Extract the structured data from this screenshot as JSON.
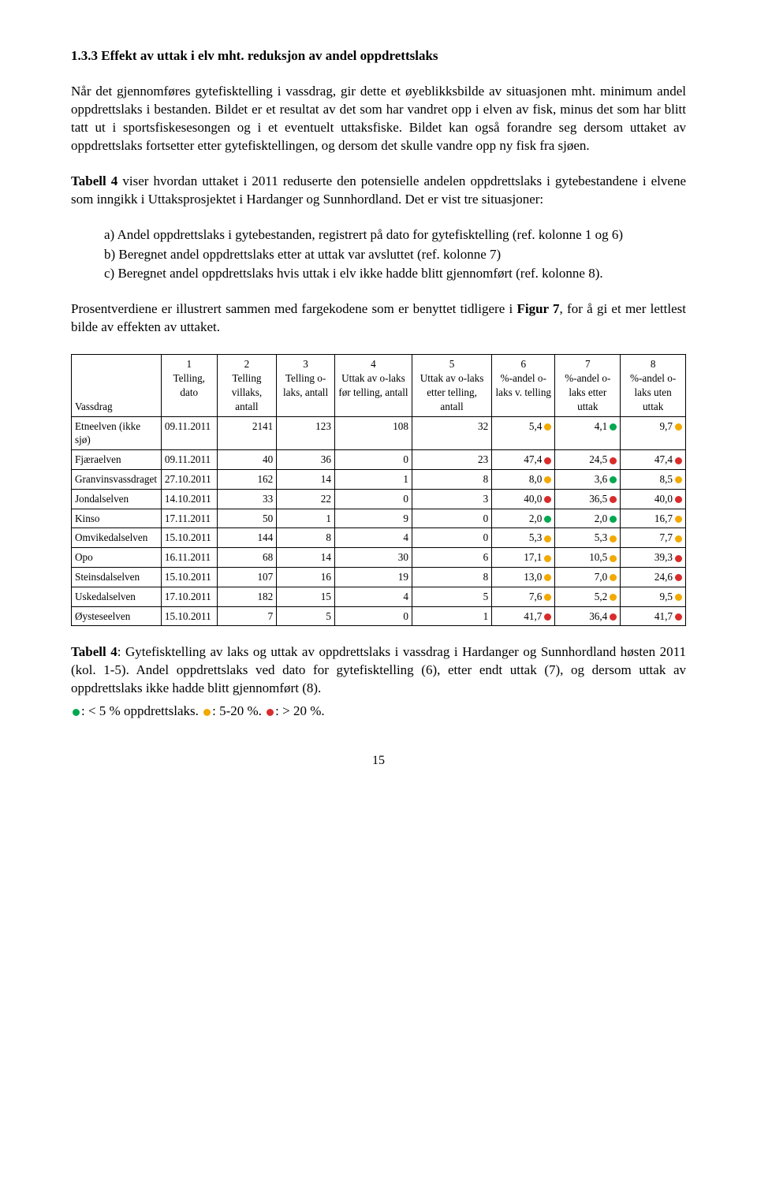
{
  "colors": {
    "green": "#00a84f",
    "orange": "#f2a900",
    "red": "#d82c2c"
  },
  "heading": "1.3.3  Effekt av uttak i elv mht. reduksjon av andel oppdrettslaks",
  "p1": "Når det gjennomføres gytefisktelling i vassdrag, gir dette et øyeblikksbilde av situasjonen mht. minimum andel oppdrettslaks i bestanden. Bildet er et resultat av det som har vandret opp i elven av fisk, minus det som har blitt tatt ut i sportsfiskesesongen og i et eventuelt uttaksfiske. Bildet kan også forandre seg dersom uttaket av oppdrettslaks fortsetter etter gytefisktellingen, og dersom det skulle vandre opp ny fisk fra sjøen.",
  "p2_prefix": "Tabell 4",
  "p2_rest": " viser hvordan uttaket i 2011 reduserte den potensielle andelen oppdrettslaks i gytebestandene i elvene som inngikk i Uttaksprosjektet i Hardanger og Sunnhordland. Det er vist tre situasjoner:",
  "list": {
    "a": "a) Andel oppdrettslaks i gytebestanden, registrert på dato for gytefisktelling (ref. kolonne 1 og 6)",
    "b": "b) Beregnet andel oppdrettslaks etter at uttak var avsluttet (ref. kolonne 7)",
    "c": "c) Beregnet andel oppdrettslaks hvis uttak i elv ikke hadde blitt gjennomført (ref. kolonne 8)."
  },
  "p3_a": "Prosentverdiene er illustrert sammen med fargekodene som er benyttet tidligere i ",
  "p3_b": "Figur 7",
  "p3_c": ", for å gi et mer lettlest bilde av effekten av uttaket.",
  "table": {
    "header": {
      "vassdrag": "Vassdrag",
      "c1a": "1",
      "c1b": "Telling, dato",
      "c2a": "2",
      "c2b": "Telling villaks, antall",
      "c3a": "3",
      "c3b": "Telling o-laks, antall",
      "c4a": "4",
      "c4b": "Uttak av o-laks før telling, antall",
      "c5a": "5",
      "c5b": "Uttak av o-laks etter telling, antall",
      "c6a": "6",
      "c6b": "%-andel o-laks v. telling",
      "c7a": "7",
      "c7b": "%-andel o-laks etter uttak",
      "c8a": "8",
      "c8b": "%-andel o-laks uten uttak"
    },
    "rows": [
      {
        "v": "Etneelven (ikke sjø)",
        "d": "09.11.2011",
        "c2": "2141",
        "c3": "123",
        "c4": "108",
        "c5": "32",
        "c6": "5,4",
        "c6dot": "orange",
        "c7": "4,1",
        "c7dot": "green",
        "c8": "9,7",
        "c8dot": "orange"
      },
      {
        "v": "Fjæraelven",
        "d": "09.11.2011",
        "c2": "40",
        "c3": "36",
        "c4": "0",
        "c5": "23",
        "c6": "47,4",
        "c6dot": "red",
        "c7": "24,5",
        "c7dot": "red",
        "c8": "47,4",
        "c8dot": "red"
      },
      {
        "v": "Granvinsvassdraget",
        "d": "27.10.2011",
        "c2": "162",
        "c3": "14",
        "c4": "1",
        "c5": "8",
        "c6": "8,0",
        "c6dot": "orange",
        "c7": "3,6",
        "c7dot": "green",
        "c8": "8,5",
        "c8dot": "orange"
      },
      {
        "v": "Jondalselven",
        "d": "14.10.2011",
        "c2": "33",
        "c3": "22",
        "c4": "0",
        "c5": "3",
        "c6": "40,0",
        "c6dot": "red",
        "c7": "36,5",
        "c7dot": "red",
        "c8": "40,0",
        "c8dot": "red"
      },
      {
        "v": "Kinso",
        "d": "17.11.2011",
        "c2": "50",
        "c3": "1",
        "c4": "9",
        "c5": "0",
        "c6": "2,0",
        "c6dot": "green",
        "c7": "2,0",
        "c7dot": "green",
        "c8": "16,7",
        "c8dot": "orange"
      },
      {
        "v": "Omvikedalselven",
        "d": "15.10.2011",
        "c2": "144",
        "c3": "8",
        "c4": "4",
        "c5": "0",
        "c6": "5,3",
        "c6dot": "orange",
        "c7": "5,3",
        "c7dot": "orange",
        "c8": "7,7",
        "c8dot": "orange"
      },
      {
        "v": "Opo",
        "d": "16.11.2011",
        "c2": "68",
        "c3": "14",
        "c4": "30",
        "c5": "6",
        "c6": "17,1",
        "c6dot": "orange",
        "c7": "10,5",
        "c7dot": "orange",
        "c8": "39,3",
        "c8dot": "red"
      },
      {
        "v": "Steinsdalselven",
        "d": "15.10.2011",
        "c2": "107",
        "c3": "16",
        "c4": "19",
        "c5": "8",
        "c6": "13,0",
        "c6dot": "orange",
        "c7": "7,0",
        "c7dot": "orange",
        "c8": "24,6",
        "c8dot": "red"
      },
      {
        "v": "Uskedalselven",
        "d": "17.10.2011",
        "c2": "182",
        "c3": "15",
        "c4": "4",
        "c5": "5",
        "c6": "7,6",
        "c6dot": "orange",
        "c7": "5,2",
        "c7dot": "orange",
        "c8": "9,5",
        "c8dot": "orange"
      },
      {
        "v": "Øysteseelven",
        "d": "15.10.2011",
        "c2": "7",
        "c3": "5",
        "c4": "0",
        "c5": "1",
        "c6": "41,7",
        "c6dot": "red",
        "c7": "36,4",
        "c7dot": "red",
        "c8": "41,7",
        "c8dot": "red"
      }
    ]
  },
  "caption_bold": "Tabell 4",
  "caption_rest": ": Gytefisktelling av laks og uttak av oppdrettslaks i vassdrag i Hardanger og Sunnhordland høsten 2011 (kol. 1-5). Andel oppdrettslaks ved dato for gytefisktelling (6), etter endt uttak (7), og dersom uttak av oppdrettslaks ikke hadde blitt gjennomført (8).",
  "legend": {
    "g": ": < 5 % oppdrettslaks. ",
    "o": ": 5-20 %. ",
    "r": ": > 20 %."
  },
  "pagenum": "15"
}
